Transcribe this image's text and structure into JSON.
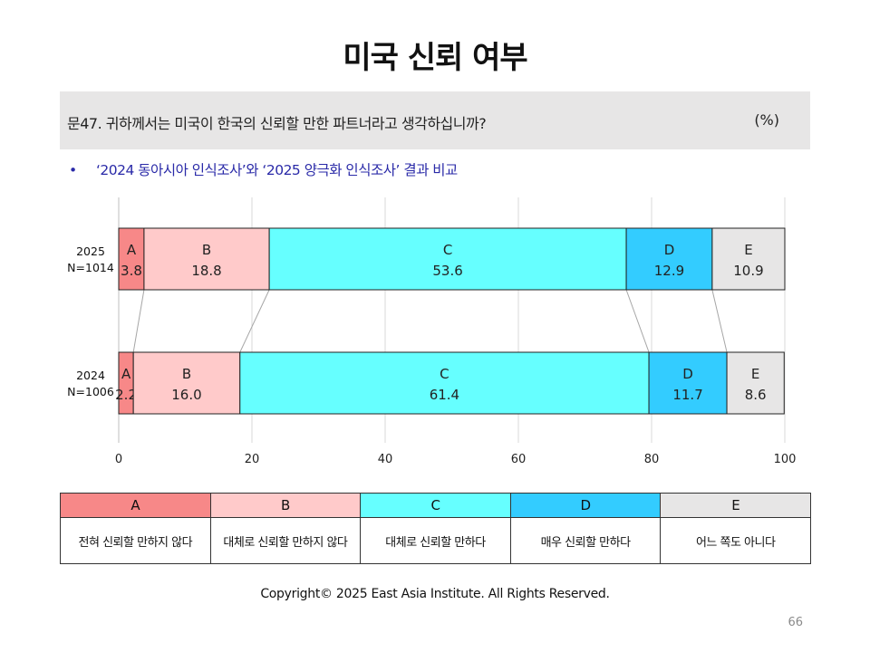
{
  "title": "미국 신뢰 여부",
  "question": {
    "text": "문47. 귀하께서는 미국이 한국의 신뢰할 만한 파트너라고 생각하십니까?",
    "unit": "(%)"
  },
  "bullet": {
    "symbol": "•",
    "text": "‘2024 동아시아 인식조사’와 ‘2025 양극화 인식조사’ 결과 비교"
  },
  "chart_data": {
    "type": "bar",
    "orientation": "horizontal",
    "stacked": true,
    "xlim": [
      0,
      100
    ],
    "xticks": [
      0,
      20,
      40,
      60,
      80,
      100
    ],
    "grid": true,
    "connector_lines": true,
    "categories": [
      "A",
      "B",
      "C",
      "D",
      "E"
    ],
    "colors": [
      "#f78888",
      "#ffcaca",
      "#66ffff",
      "#33ccff",
      "#e7e6e6"
    ],
    "rows": [
      {
        "label": "2025",
        "n": "N=1014",
        "values": [
          3.8,
          18.8,
          53.6,
          12.9,
          10.9
        ]
      },
      {
        "label": "2024",
        "n": "N=1006",
        "values": [
          2.2,
          16.0,
          61.4,
          11.7,
          8.6
        ]
      }
    ]
  },
  "legend": {
    "items": [
      {
        "key": "A",
        "label": "전혀 신뢰할 만하지 않다",
        "color": "#f78888"
      },
      {
        "key": "B",
        "label": "대체로 신뢰할 만하지 않다",
        "color": "#ffcaca"
      },
      {
        "key": "C",
        "label": "대체로 신뢰할 만하다",
        "color": "#66ffff"
      },
      {
        "key": "D",
        "label": "매우 신뢰할 만하다",
        "color": "#33ccff"
      },
      {
        "key": "E",
        "label": "어느 쪽도 아니다",
        "color": "#e7e6e6"
      }
    ]
  },
  "copyright": "Copyright© 2025 East Asia Institute. All Rights Reserved.",
  "page_number": "66"
}
